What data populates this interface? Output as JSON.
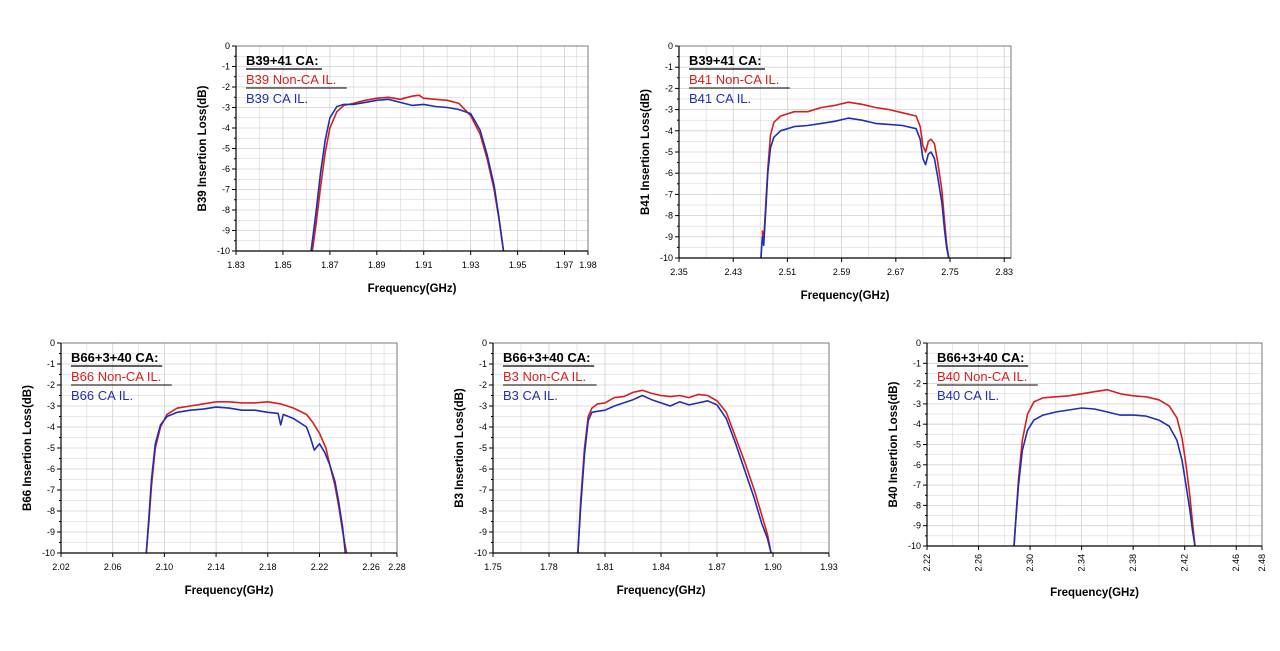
{
  "colors": {
    "non_ca": "#d62020",
    "ca": "#1f2fb0",
    "grid": "#d0d0d0",
    "frame": "#000000"
  },
  "chart_data": [
    {
      "type": "line",
      "title": "",
      "legend_title": "B39+41 CA:",
      "legend_position": "top-left",
      "xlabel": "Frequency(GHz)",
      "ylabel": "B39 Insertion Loss(dB)",
      "xlim": [
        1.83,
        1.98
      ],
      "ylim": [
        -10,
        0
      ],
      "x_ticks": [
        "1.83",
        "1.85",
        "1.87",
        "1.89",
        "1.91",
        "1.93",
        "1.95",
        "1.97",
        "1.98"
      ],
      "x_tick_values": [
        1.83,
        1.85,
        1.87,
        1.89,
        1.91,
        1.93,
        1.95,
        1.97,
        1.98
      ],
      "y_ticks": [
        "0",
        "-1",
        "-2",
        "-3",
        "-4",
        "-5",
        "-6",
        "-7",
        "-8",
        "-9",
        "-10"
      ],
      "grid": true,
      "series": [
        {
          "name": "B39 Non-CA IL.",
          "color": "#d62020",
          "x": [
            1.8625,
            1.864,
            1.866,
            1.868,
            1.87,
            1.873,
            1.876,
            1.88,
            1.885,
            1.89,
            1.895,
            1.9,
            1.905,
            1.908,
            1.91,
            1.915,
            1.92,
            1.925,
            1.93,
            1.934,
            1.937,
            1.94,
            1.942,
            1.944
          ],
          "y": [
            -10,
            -8.8,
            -6.9,
            -5.2,
            -4.0,
            -3.2,
            -2.9,
            -2.8,
            -2.65,
            -2.55,
            -2.5,
            -2.6,
            -2.45,
            -2.4,
            -2.55,
            -2.6,
            -2.65,
            -2.8,
            -3.4,
            -4.3,
            -5.5,
            -7.0,
            -8.4,
            -10
          ]
        },
        {
          "name": "B39 CA IL.",
          "color": "#1f2fb0",
          "x": [
            1.862,
            1.864,
            1.866,
            1.868,
            1.87,
            1.873,
            1.876,
            1.88,
            1.885,
            1.89,
            1.895,
            1.9,
            1.905,
            1.91,
            1.915,
            1.92,
            1.925,
            1.93,
            1.934,
            1.937,
            1.94,
            1.942,
            1.944
          ],
          "y": [
            -10,
            -8.2,
            -6.2,
            -4.6,
            -3.5,
            -2.95,
            -2.85,
            -2.85,
            -2.75,
            -2.65,
            -2.6,
            -2.75,
            -2.9,
            -2.85,
            -2.95,
            -3.0,
            -3.1,
            -3.3,
            -4.1,
            -5.3,
            -6.8,
            -8.3,
            -10
          ]
        }
      ]
    },
    {
      "type": "line",
      "title": "",
      "legend_title": "B39+41 CA:",
      "legend_position": "top-left",
      "xlabel": "Frequency(GHz)",
      "ylabel": "B41 Insertion Loss(dB)",
      "xlim": [
        2.35,
        2.84
      ],
      "ylim": [
        -10,
        0
      ],
      "x_ticks": [
        "2.35",
        "2.43",
        "2.51",
        "2.59",
        "2.67",
        "2.75",
        "2.83"
      ],
      "x_tick_values": [
        2.35,
        2.43,
        2.51,
        2.59,
        2.67,
        2.75,
        2.83
      ],
      "y_ticks": [
        "0",
        "-1",
        "-2",
        "-3",
        "-4",
        "-5",
        "-6",
        "-7",
        "-8",
        "-9",
        "-10"
      ],
      "grid": true,
      "series": [
        {
          "name": "B41 Non-CA IL.",
          "color": "#d62020",
          "x": [
            2.473,
            2.474,
            2.476,
            2.478,
            2.481,
            2.485,
            2.49,
            2.5,
            2.52,
            2.54,
            2.56,
            2.58,
            2.6,
            2.62,
            2.64,
            2.66,
            2.68,
            2.7,
            2.706,
            2.71,
            2.714,
            2.718,
            2.722,
            2.727,
            2.732,
            2.738,
            2.742,
            2.745,
            2.748
          ],
          "y": [
            -8.7,
            -9.3,
            -8.6,
            -7.5,
            -5.8,
            -4.2,
            -3.6,
            -3.3,
            -3.1,
            -3.1,
            -2.9,
            -2.8,
            -2.65,
            -2.75,
            -2.9,
            -3.0,
            -3.15,
            -3.3,
            -3.8,
            -4.7,
            -5.0,
            -4.5,
            -4.4,
            -4.6,
            -5.5,
            -6.8,
            -8.3,
            -9.3,
            -10
          ]
        },
        {
          "name": "B41 CA IL.",
          "color": "#1f2fb0",
          "x": [
            2.471,
            2.473,
            2.475,
            2.478,
            2.481,
            2.485,
            2.49,
            2.5,
            2.52,
            2.54,
            2.56,
            2.58,
            2.6,
            2.62,
            2.64,
            2.66,
            2.68,
            2.7,
            2.706,
            2.71,
            2.714,
            2.718,
            2.722,
            2.727,
            2.732,
            2.738,
            2.742,
            2.745,
            2.748
          ],
          "y": [
            -10,
            -9.0,
            -9.4,
            -7.8,
            -6.0,
            -4.8,
            -4.3,
            -4.0,
            -3.8,
            -3.75,
            -3.65,
            -3.55,
            -3.4,
            -3.5,
            -3.65,
            -3.7,
            -3.75,
            -3.9,
            -4.4,
            -5.3,
            -5.6,
            -5.1,
            -5.0,
            -5.3,
            -6.2,
            -7.4,
            -8.7,
            -9.5,
            -10
          ]
        }
      ]
    },
    {
      "type": "line",
      "title": "",
      "legend_title": "B66+3+40 CA:",
      "legend_position": "top-left",
      "xlabel": "Frequency(GHz)",
      "ylabel": "B66 Insertion Loss(dB)",
      "xlim": [
        2.02,
        2.28
      ],
      "ylim": [
        -10,
        0
      ],
      "x_ticks": [
        "2.02",
        "2.06",
        "2.10",
        "2.14",
        "2.18",
        "2.22",
        "2.26",
        "2.28"
      ],
      "x_tick_values": [
        2.02,
        2.06,
        2.1,
        2.14,
        2.18,
        2.22,
        2.26,
        2.28
      ],
      "y_ticks": [
        "0",
        "-1",
        "-2",
        "-3",
        "-4",
        "-5",
        "-6",
        "-7",
        "-8",
        "-9",
        "-10"
      ],
      "grid": true,
      "series": [
        {
          "name": "B66 Non-CA IL.",
          "color": "#d62020",
          "x": [
            2.086,
            2.088,
            2.09,
            2.093,
            2.097,
            2.102,
            2.11,
            2.12,
            2.13,
            2.14,
            2.15,
            2.16,
            2.17,
            2.18,
            2.19,
            2.2,
            2.21,
            2.215,
            2.22,
            2.225,
            2.228,
            2.232,
            2.235,
            2.238,
            2.241
          ],
          "y": [
            -10,
            -8.5,
            -6.8,
            -5.0,
            -4.0,
            -3.4,
            -3.1,
            -3.0,
            -2.9,
            -2.8,
            -2.8,
            -2.85,
            -2.85,
            -2.8,
            -2.9,
            -3.1,
            -3.4,
            -3.8,
            -4.3,
            -5.0,
            -5.8,
            -6.8,
            -7.8,
            -9.0,
            -10
          ]
        },
        {
          "name": "B66 CA IL.",
          "color": "#1f2fb0",
          "x": [
            2.086,
            2.088,
            2.09,
            2.093,
            2.097,
            2.102,
            2.11,
            2.12,
            2.13,
            2.14,
            2.15,
            2.16,
            2.17,
            2.18,
            2.188,
            2.19,
            2.192,
            2.2,
            2.21,
            2.213,
            2.216,
            2.22,
            2.224,
            2.228,
            2.232,
            2.235,
            2.238,
            2.24
          ],
          "y": [
            -10,
            -8.3,
            -6.5,
            -4.8,
            -3.9,
            -3.5,
            -3.3,
            -3.2,
            -3.15,
            -3.05,
            -3.1,
            -3.2,
            -3.2,
            -3.3,
            -3.35,
            -3.9,
            -3.4,
            -3.6,
            -4.0,
            -4.5,
            -5.1,
            -4.8,
            -5.2,
            -5.8,
            -6.6,
            -7.6,
            -8.8,
            -10
          ]
        }
      ]
    },
    {
      "type": "line",
      "title": "",
      "legend_title": "B66+3+40 CA:",
      "legend_position": "top-left",
      "xlabel": "Frequency(GHz)",
      "ylabel": "B3 Insertion Loss(dB)",
      "xlim": [
        1.75,
        1.93
      ],
      "ylim": [
        -10,
        0
      ],
      "x_ticks": [
        "1.75",
        "1.78",
        "1.81",
        "1.84",
        "1.87",
        "1.90",
        "1.93"
      ],
      "x_tick_values": [
        1.75,
        1.78,
        1.81,
        1.84,
        1.87,
        1.9,
        1.93
      ],
      "y_ticks": [
        "0",
        "-1",
        "-2",
        "-3",
        "-4",
        "-5",
        "-6",
        "-7",
        "-8",
        "-9",
        "-10"
      ],
      "grid": true,
      "series": [
        {
          "name": "B3 Non-CA IL.",
          "color": "#d62020",
          "x": [
            1.7955,
            1.797,
            1.799,
            1.801,
            1.803,
            1.806,
            1.81,
            1.815,
            1.82,
            1.825,
            1.83,
            1.835,
            1.84,
            1.845,
            1.85,
            1.855,
            1.86,
            1.865,
            1.87,
            1.875,
            1.88,
            1.885,
            1.89,
            1.894,
            1.897,
            1.899
          ],
          "y": [
            -10,
            -7.5,
            -5.0,
            -3.5,
            -3.1,
            -2.9,
            -2.85,
            -2.6,
            -2.55,
            -2.35,
            -2.25,
            -2.4,
            -2.5,
            -2.55,
            -2.5,
            -2.6,
            -2.45,
            -2.5,
            -2.75,
            -3.3,
            -4.5,
            -5.7,
            -7.0,
            -8.2,
            -9.1,
            -10
          ]
        },
        {
          "name": "B3 CA IL.",
          "color": "#1f2fb0",
          "x": [
            1.7955,
            1.797,
            1.799,
            1.801,
            1.803,
            1.806,
            1.81,
            1.815,
            1.82,
            1.825,
            1.83,
            1.835,
            1.84,
            1.845,
            1.85,
            1.855,
            1.86,
            1.865,
            1.87,
            1.875,
            1.88,
            1.885,
            1.89,
            1.894,
            1.897,
            1.899
          ],
          "y": [
            -10,
            -7.8,
            -5.3,
            -3.7,
            -3.3,
            -3.25,
            -3.2,
            -3.0,
            -2.85,
            -2.7,
            -2.5,
            -2.7,
            -2.85,
            -3.0,
            -2.8,
            -2.95,
            -2.85,
            -2.75,
            -2.95,
            -3.6,
            -4.8,
            -6.1,
            -7.4,
            -8.6,
            -9.3,
            -10
          ]
        }
      ]
    },
    {
      "type": "line",
      "title": "",
      "legend_title": "B66+3+40 CA:",
      "legend_position": "top-left",
      "xlabel": "Frequency(GHz)",
      "ylabel": "B40 Insertion Loss(dB)",
      "xlim": [
        2.22,
        2.48
      ],
      "ylim": [
        -10,
        0
      ],
      "x_ticks": [
        "2.22",
        "2.26",
        "2.30",
        "2.34",
        "2.38",
        "2.42",
        "2.46",
        "2.48"
      ],
      "x_tick_values": [
        2.22,
        2.26,
        2.3,
        2.34,
        2.38,
        2.42,
        2.46,
        2.48
      ],
      "x_tick_rotation": -90,
      "y_ticks": [
        "0",
        "-1",
        "-2",
        "-3",
        "-4",
        "-5",
        "-6",
        "-7",
        "-8",
        "-9",
        "-10"
      ],
      "grid": true,
      "series": [
        {
          "name": "B40 Non-CA IL.",
          "color": "#d62020",
          "x": [
            2.2875,
            2.289,
            2.291,
            2.294,
            2.298,
            2.303,
            2.31,
            2.32,
            2.33,
            2.34,
            2.35,
            2.36,
            2.37,
            2.38,
            2.39,
            2.4,
            2.408,
            2.414,
            2.418,
            2.421,
            2.424,
            2.426,
            2.428
          ],
          "y": [
            -10,
            -8.6,
            -6.7,
            -4.8,
            -3.5,
            -2.9,
            -2.7,
            -2.65,
            -2.6,
            -2.5,
            -2.4,
            -2.3,
            -2.5,
            -2.6,
            -2.65,
            -2.8,
            -3.1,
            -3.7,
            -4.7,
            -6.0,
            -7.5,
            -8.8,
            -10
          ]
        },
        {
          "name": "B40 CA IL.",
          "color": "#1f2fb0",
          "x": [
            2.2875,
            2.289,
            2.291,
            2.294,
            2.298,
            2.303,
            2.31,
            2.32,
            2.33,
            2.34,
            2.35,
            2.36,
            2.37,
            2.38,
            2.39,
            2.4,
            2.408,
            2.414,
            2.418,
            2.421,
            2.424,
            2.426,
            2.428
          ],
          "y": [
            -10,
            -8.7,
            -7.0,
            -5.3,
            -4.3,
            -3.8,
            -3.55,
            -3.4,
            -3.3,
            -3.2,
            -3.25,
            -3.4,
            -3.55,
            -3.55,
            -3.6,
            -3.8,
            -4.1,
            -4.8,
            -5.8,
            -7.0,
            -8.2,
            -9.2,
            -10
          ]
        }
      ]
    }
  ]
}
